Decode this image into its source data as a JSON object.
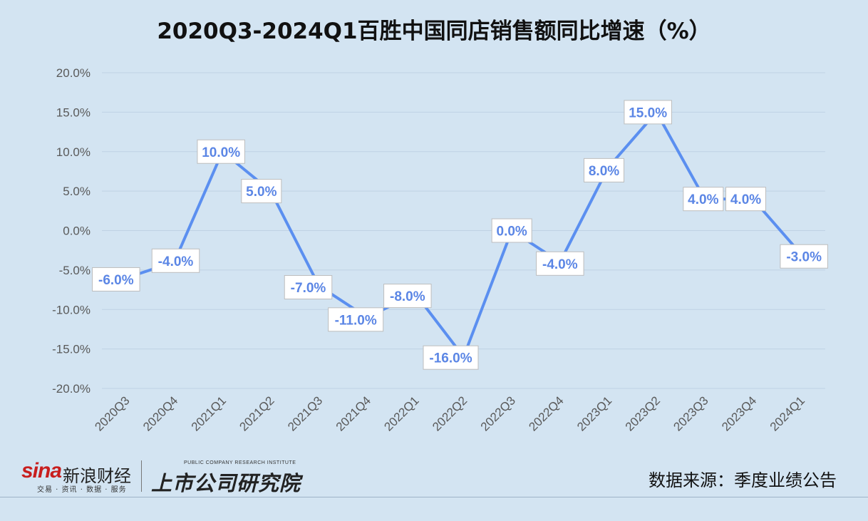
{
  "title": "2020Q3-2024Q1百胜中国同店销售额同比增速（%）",
  "chart_data": {
    "type": "line",
    "title": "2020Q3-2024Q1百胜中国同店销售额同比增速（%）",
    "categories": [
      "2020Q3",
      "2020Q4",
      "2021Q1",
      "2021Q2",
      "2021Q3",
      "2021Q4",
      "2022Q1",
      "2022Q2",
      "2022Q3",
      "2022Q4",
      "2023Q1",
      "2023Q2",
      "2023Q3",
      "2023Q4",
      "2024Q1"
    ],
    "series": [
      {
        "values": [
          -6.0,
          -4.0,
          10.0,
          5.0,
          -7.0,
          -11.0,
          -8.0,
          -16.0,
          0.0,
          -4.0,
          8.0,
          15.0,
          4.0,
          4.0,
          -3.0
        ]
      }
    ],
    "data_labels": [
      "-6.0%",
      "-4.0%",
      "10.0%",
      "5.0%",
      "-7.0%",
      "-11.0%",
      "-8.0%",
      "-16.0%",
      "0.0%",
      "-4.0%",
      "8.0%",
      "15.0%",
      "4.0%",
      "4.0%",
      "-3.0%"
    ],
    "yticks": [
      20,
      15,
      10,
      5,
      0,
      -5,
      -10,
      -15,
      -20
    ],
    "ytick_labels": [
      "20.0%",
      "15.0%",
      "10.0%",
      "5.0%",
      "0.0%",
      "-5.0%",
      "-10.0%",
      "-15.0%",
      "-20.0%"
    ],
    "ylim": [
      -20,
      20
    ],
    "xlabel": "",
    "ylabel": "",
    "grid": true,
    "line_color": "#5b8ff0",
    "label_color": "#5b86e5"
  },
  "footer": {
    "sina_logo": "sina",
    "sina_name": "新浪财经",
    "sina_sub": "交易 · 资讯 · 数据 · 服务",
    "institute_en": "PUBLIC COMPANY RESEARCH INSTITUTE",
    "institute_name": "上市公司研究院",
    "source": "数据来源：季度业绩公告"
  }
}
